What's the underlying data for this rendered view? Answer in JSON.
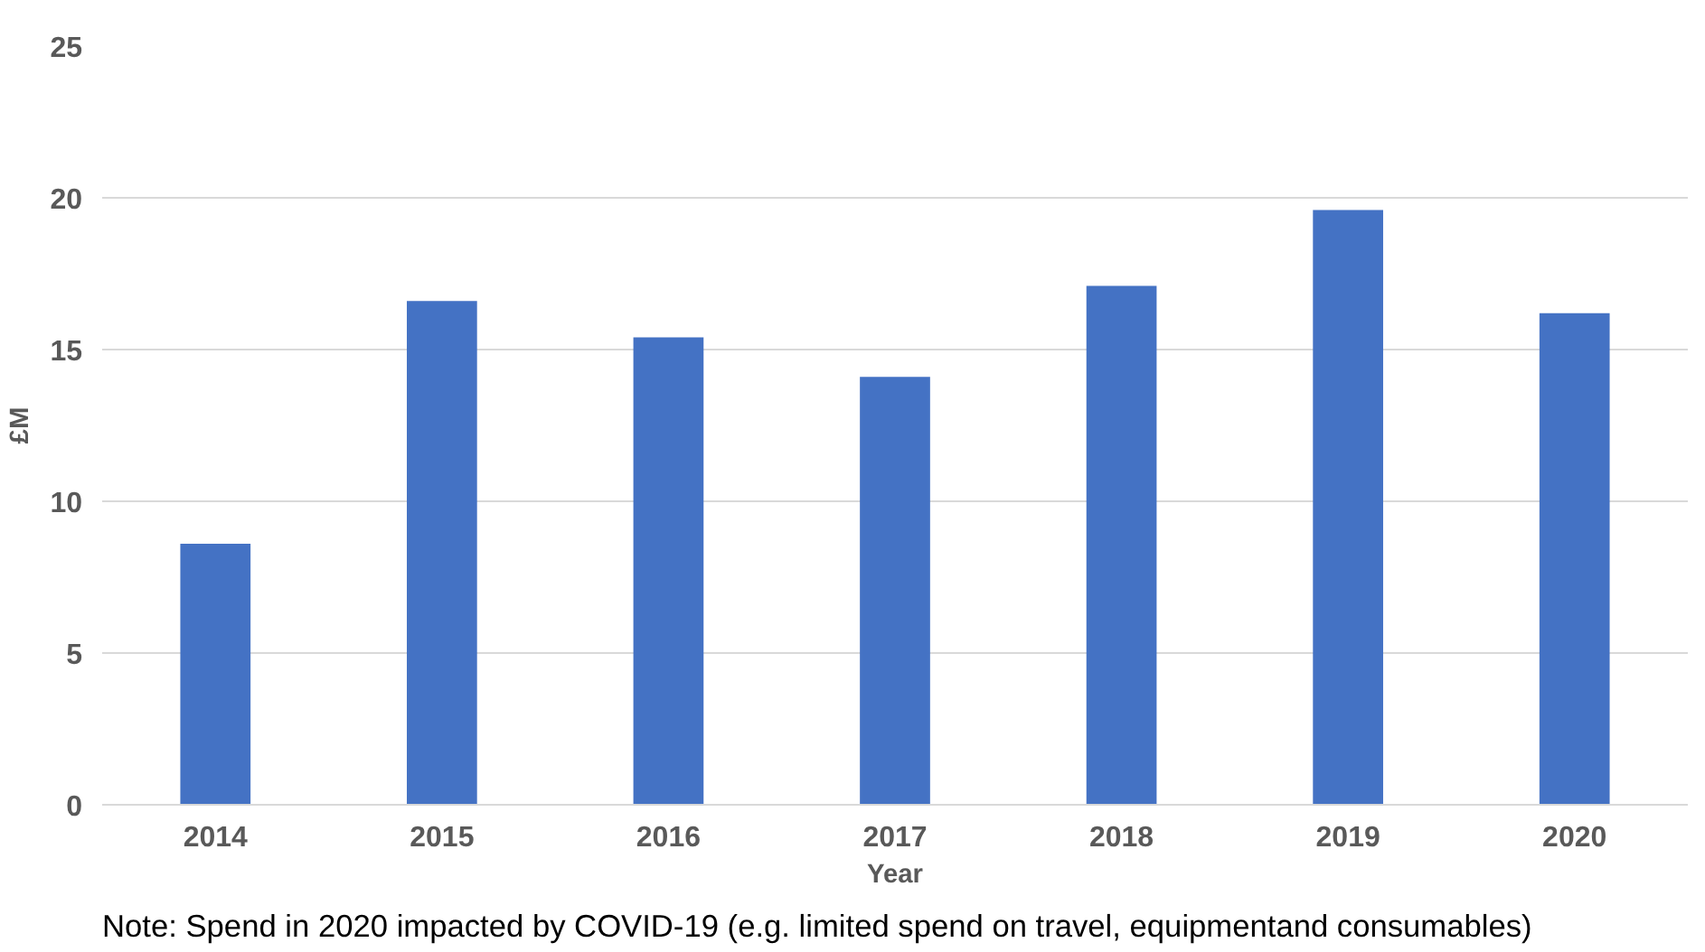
{
  "chart_data": {
    "type": "bar",
    "xlabel": "Year",
    "ylabel": "£M",
    "categories": [
      "2014",
      "2015",
      "2016",
      "2017",
      "2018",
      "2019",
      "2020"
    ],
    "values": [
      8.6,
      16.6,
      15.4,
      14.1,
      17.1,
      19.6,
      16.2
    ],
    "color": "#4472c4",
    "ylim": [
      0,
      25
    ],
    "yticks": [
      0,
      5,
      10,
      15,
      20,
      25
    ],
    "grid": "y",
    "annotations": [
      "Note: Spend in 2020 impacted by COVID-19 (e.g. limited spend on travel, equipmentand consumables)"
    ]
  }
}
